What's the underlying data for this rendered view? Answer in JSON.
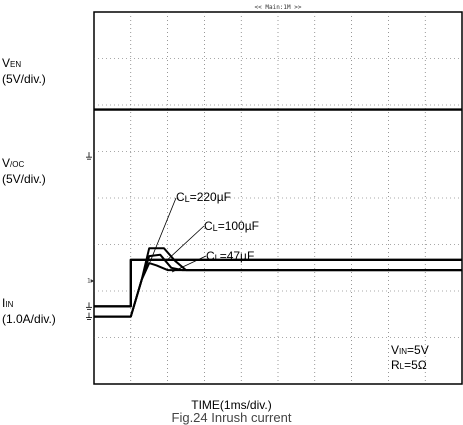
{
  "screen_header": "<< Main:1M >>",
  "chart_data": {
    "type": "line",
    "title": "",
    "xlabel": "TIME(1ms/div.)",
    "x_unit": "ms",
    "x_divisions": 10,
    "y_divisions": 8,
    "grid": true,
    "channels": [
      {
        "name_main": "V",
        "name_sub": "EN",
        "scale": "(5V/div.)",
        "marker": "1▶",
        "offset_div": 1.67,
        "points": [
          [
            0,
            0
          ],
          [
            1.0,
            0
          ],
          [
            1.0,
            1.0
          ],
          [
            10,
            1.0
          ]
        ]
      },
      {
        "name_main": "V",
        "name_sub": "/OC",
        "scale": "(5V/div.)",
        "marker": "",
        "offset_div": 4.9,
        "points": [
          [
            0,
            1.0
          ],
          [
            10,
            1.0
          ]
        ]
      },
      {
        "name_main": "I",
        "name_sub": "IN",
        "scale": "(1.0A/div.)",
        "marker": "",
        "offset_div": 1.45,
        "series": [
          {
            "label_main": "C",
            "label_sub": "L",
            "label_value": "=220µF",
            "points": [
              [
                0,
                0
              ],
              [
                1.0,
                0
              ],
              [
                1.3,
                0.8
              ],
              [
                1.5,
                1.47
              ],
              [
                1.9,
                1.47
              ],
              [
                2.2,
                1.2
              ],
              [
                2.5,
                1.0
              ],
              [
                10,
                1.0
              ]
            ]
          },
          {
            "label_main": "C",
            "label_sub": "L",
            "label_value": "=100µF",
            "points": [
              [
                0,
                0
              ],
              [
                1.0,
                0
              ],
              [
                1.3,
                0.8
              ],
              [
                1.5,
                1.3
              ],
              [
                1.8,
                1.33
              ],
              [
                2.1,
                1.05
              ],
              [
                2.4,
                1.0
              ],
              [
                10,
                1.0
              ]
            ]
          },
          {
            "label_main": "C",
            "label_sub": "L",
            "label_value": "=47µF",
            "points": [
              [
                0,
                0
              ],
              [
                1.0,
                0
              ],
              [
                1.3,
                0.8
              ],
              [
                1.5,
                1.15
              ],
              [
                1.7,
                1.1
              ],
              [
                2.0,
                1.0
              ],
              [
                10,
                1.0
              ]
            ]
          }
        ]
      }
    ]
  },
  "conditions": {
    "vin_main": "V",
    "vin_sub": "IN",
    "vin_value": "=5V",
    "rl_main": "R",
    "rl_sub": "L",
    "rl_value": "=5Ω"
  },
  "caption": "Fig.24 Inrush current"
}
